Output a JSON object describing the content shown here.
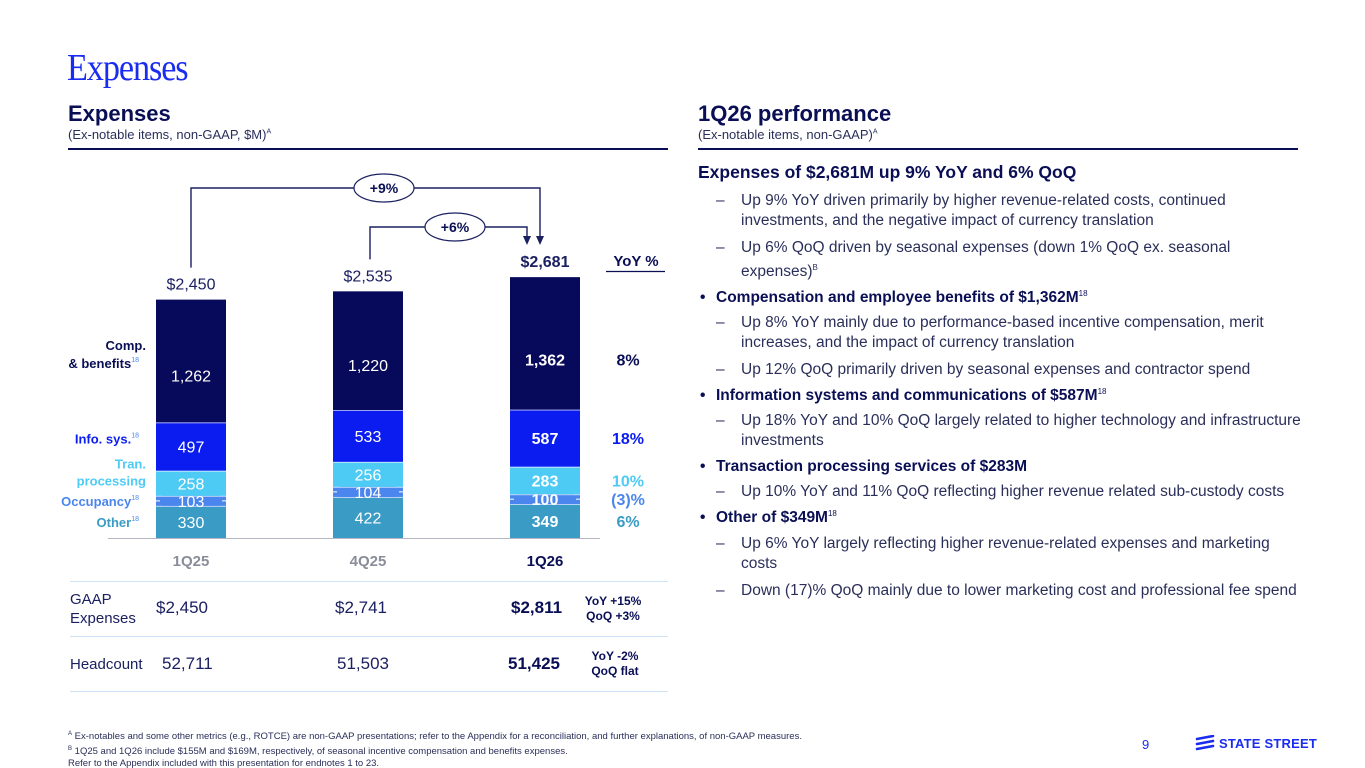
{
  "slide": {
    "title": "Expenses",
    "page_number": "9",
    "brand": "STATE STREET"
  },
  "left_section": {
    "heading": "Expenses",
    "subheading": "(Ex-notable items, non-GAAP, $M)",
    "subheading_note": "A"
  },
  "right_section": {
    "heading": "1Q26 performance",
    "subheading": "(Ex-notable items, non-GAAP)",
    "subheading_note": "A"
  },
  "chart_data": {
    "type": "bar",
    "stacked": true,
    "title": "Expenses",
    "subtitle": "(Ex-notable items, non-GAAP, $M)",
    "categories": [
      "1Q25",
      "4Q25",
      "1Q26"
    ],
    "highlight_category": "1Q26",
    "totals": [
      "$2,450",
      "$2,535",
      "$2,681"
    ],
    "total_values": [
      2450,
      2535,
      2681
    ],
    "series": [
      {
        "name": "Other",
        "label": "Other",
        "note": "18",
        "color": "#3a9cc4",
        "values": [
          330,
          422,
          349
        ],
        "yoy": "6%"
      },
      {
        "name": "Occupancy",
        "label": "Occupancy",
        "note": "18",
        "color": "#4a86ee",
        "values": [
          103,
          104,
          100
        ],
        "yoy": "(3)%"
      },
      {
        "name": "Transaction processing",
        "label": "Tran. processing",
        "note": "",
        "color": "#4ecbf4",
        "values": [
          258,
          256,
          283
        ],
        "yoy": "10%"
      },
      {
        "name": "Information systems",
        "label": "Info. sys.",
        "note": "18",
        "color": "#0a1cf0",
        "values": [
          497,
          533,
          587
        ],
        "yoy": "18%"
      },
      {
        "name": "Compensation & benefits",
        "label": "Comp. & benefits",
        "note": "18",
        "color": "#07095a",
        "values": [
          1262,
          1220,
          1362
        ],
        "yoy": "8%"
      }
    ],
    "yoy_header": "YoY %",
    "annotations": [
      {
        "from": "1Q25",
        "to": "1Q26",
        "label": "+9%"
      },
      {
        "from": "4Q25",
        "to": "1Q26",
        "label": "+6%"
      }
    ],
    "xlabel": "",
    "ylabel": "",
    "grid": false
  },
  "table": {
    "rows": [
      {
        "label": "GAAP Expenses",
        "values": [
          "$2,450",
          "$2,741",
          "$2,811"
        ],
        "delta_yoy": "YoY +15%",
        "delta_qoq": "QoQ +3%"
      },
      {
        "label": "Headcount",
        "values": [
          "52,711",
          "51,503",
          "51,425"
        ],
        "delta_yoy": "YoY -2%",
        "delta_qoq": "QoQ flat"
      }
    ]
  },
  "performance": {
    "lead": "Expenses of $2,681M up 9% YoY and 6% QoQ",
    "lead_points": [
      {
        "text": "Up 9% YoY driven primarily by higher revenue-related costs, continued investments, and the negative impact of currency translation",
        "note": ""
      },
      {
        "text": "Up 6% QoQ driven by seasonal expenses (down 1% QoQ ex. seasonal expenses)",
        "note": "B"
      }
    ],
    "bullets": [
      {
        "title": "Compensation and employee benefits of $1,362M",
        "note": "18",
        "points": [
          "Up 8% YoY mainly due to performance-based incentive compensation, merit increases, and the impact of currency translation",
          "Up 12% QoQ primarily driven by seasonal expenses and contractor spend"
        ]
      },
      {
        "title": "Information systems and communications of $587M",
        "note": "18",
        "points": [
          "Up 18% YoY and 10% QoQ largely related to higher technology and infrastructure investments"
        ]
      },
      {
        "title": "Transaction processing services of $283M",
        "note": "",
        "points": [
          "Up 10% YoY and 11% QoQ reflecting higher revenue related sub-custody costs"
        ]
      },
      {
        "title": "Other of $349M",
        "note": "18",
        "points": [
          "Up 6% YoY largely reflecting higher revenue-related expenses and marketing costs",
          "Down (17)% QoQ mainly due to lower marketing cost and professional fee spend"
        ]
      }
    ]
  },
  "footnotes": [
    {
      "mark": "A",
      "text": "Ex-notables and some other metrics (e.g., ROTCE) are non-GAAP presentations; refer to the Appendix for a reconciliation, and further explanations, of non-GAAP measures."
    },
    {
      "mark": "B",
      "text": "1Q25 and 1Q26 include $155M and $169M, respectively, of seasonal incentive compensation and benefits expenses."
    },
    {
      "mark": "",
      "text": "Refer to the Appendix included with this presentation for endnotes 1 to 23."
    }
  ]
}
